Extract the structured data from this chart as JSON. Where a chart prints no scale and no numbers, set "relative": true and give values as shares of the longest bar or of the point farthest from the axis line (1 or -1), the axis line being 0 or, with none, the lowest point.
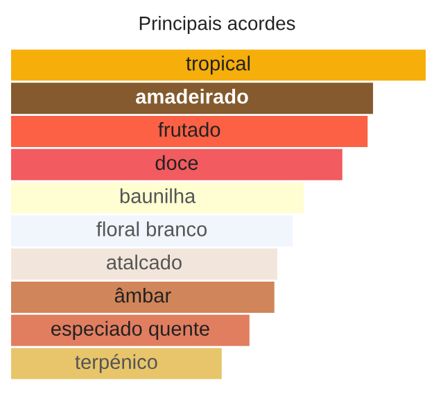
{
  "chart_data": {
    "type": "bar",
    "orientation": "horizontal",
    "relative": true,
    "title": "Principais acordes",
    "categories": [
      "tropical",
      "amadeirado",
      "frutado",
      "doce",
      "baunilha",
      "floral branco",
      "atalcado",
      "âmbar",
      "especiado quente",
      "terpénico"
    ],
    "values": [
      1,
      0.873,
      0.86,
      0.799,
      0.706,
      0.679,
      0.642,
      0.635,
      0.575,
      0.508
    ],
    "colors": [
      "#f6ae0a",
      "#845a2e",
      "#fc6145",
      "#f25b5f",
      "#fffdd2",
      "#f1f5fc",
      "#f2e6dc",
      "#d1855a",
      "#e27e60",
      "#e8c56a"
    ]
  }
}
